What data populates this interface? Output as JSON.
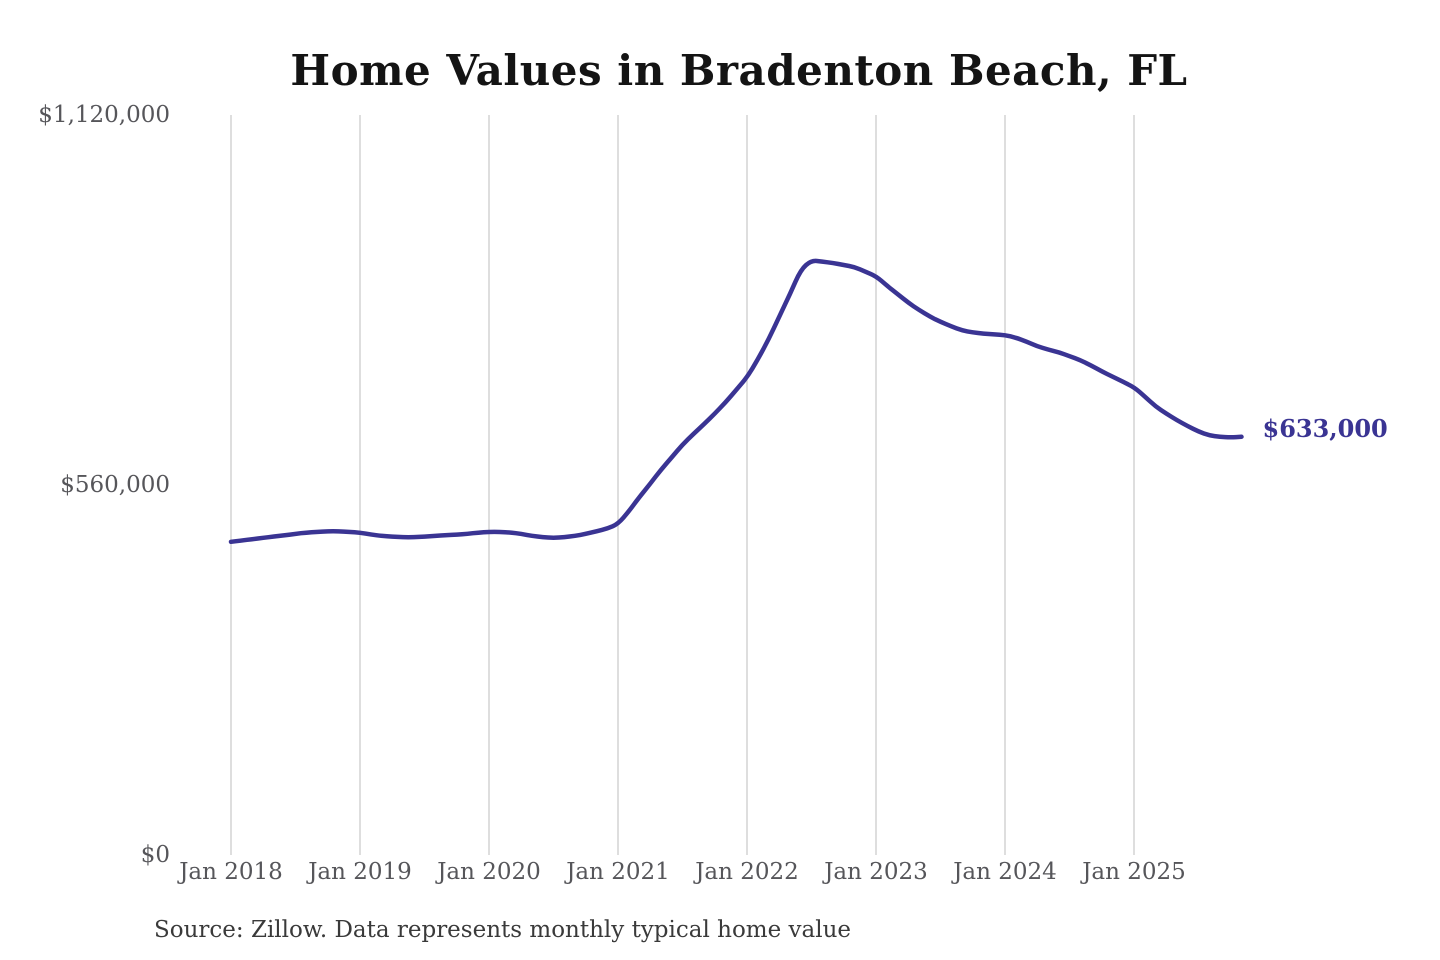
{
  "chart_data": {
    "type": "line",
    "title": "Home Values in Bradenton Beach, FL",
    "source_note": "Source: Zillow. Data represents monthly typical home value",
    "end_label": "$633,000",
    "legend": "none",
    "grid": "vertical-only",
    "ylim": [
      0,
      1120000
    ],
    "y_ticks": [
      {
        "label": "$0",
        "value": 0
      },
      {
        "label": "$560,000",
        "value": 560000
      },
      {
        "label": "$1,120,000",
        "value": 1120000
      }
    ],
    "x_ticks": [
      {
        "label": "Jan 2018",
        "month_index": 0
      },
      {
        "label": "Jan 2019",
        "month_index": 12
      },
      {
        "label": "Jan 2020",
        "month_index": 24
      },
      {
        "label": "Jan 2021",
        "month_index": 36
      },
      {
        "label": "Jan 2022",
        "month_index": 48
      },
      {
        "label": "Jan 2023",
        "month_index": 60
      },
      {
        "label": "Jan 2024",
        "month_index": 72
      },
      {
        "label": "Jan 2025",
        "month_index": 84
      }
    ],
    "colors": {
      "line": "#3a3493",
      "grid": "#c9c9c9",
      "title_text": "#141414",
      "tick_text": "#56565a",
      "source_text": "#3a3a3a"
    },
    "series": [
      {
        "name": "Typical home value",
        "start": "Jan 2018",
        "interval": "monthly",
        "values": [
          474000,
          476000,
          478000,
          480000,
          482000,
          484000,
          486000,
          488000,
          489000,
          490000,
          490000,
          489000,
          488000,
          485000,
          483000,
          482000,
          481000,
          481000,
          482000,
          483000,
          484000,
          485000,
          486000,
          488000,
          489000,
          489000,
          488000,
          486000,
          483000,
          481000,
          480000,
          481000,
          483000,
          486000,
          490000,
          494000,
          501000,
          520000,
          542000,
          562000,
          583000,
          602000,
          621000,
          637000,
          652000,
          668000,
          685000,
          704000,
          723000,
          750000,
          780000,
          815000,
          849000,
          886000,
          900000,
          898000,
          896000,
          893000,
          890000,
          883000,
          876000,
          862000,
          849000,
          836000,
          825000,
          815000,
          807000,
          800000,
          794000,
          791000,
          789000,
          788000,
          787000,
          783000,
          777000,
          770000,
          765000,
          761000,
          755000,
          749000,
          741000,
          732000,
          724000,
          716000,
          708000,
          694000,
          679000,
          668000,
          658000,
          649000,
          641000,
          635000,
          633000,
          632000,
          633000
        ]
      }
    ]
  }
}
